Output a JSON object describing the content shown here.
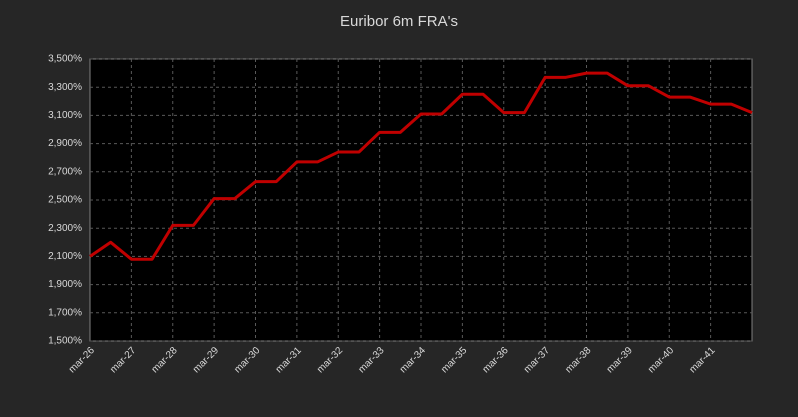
{
  "chart_data": {
    "type": "line",
    "title": "Euribor 6m FRA's",
    "categories": [
      "mar-26",
      null,
      "mar-27",
      null,
      "mar-28",
      null,
      "mar-29",
      null,
      "mar-30",
      null,
      "mar-31",
      null,
      "mar-32",
      null,
      "mar-33",
      null,
      "mar-34",
      null,
      "mar-35",
      null,
      "mar-36",
      null,
      "mar-37",
      null,
      "mar-38",
      null,
      "mar-39",
      null,
      "mar-40",
      null,
      "mar-41",
      null,
      null
    ],
    "series": [
      {
        "name": "Euribor 6m FRA",
        "color": "#c00000",
        "values": [
          2.1,
          2.2,
          2.08,
          2.08,
          2.32,
          2.32,
          2.51,
          2.51,
          2.63,
          2.63,
          2.77,
          2.77,
          2.84,
          2.84,
          2.98,
          2.98,
          3.11,
          3.11,
          3.25,
          3.25,
          3.12,
          3.12,
          3.37,
          3.37,
          3.4,
          3.4,
          3.31,
          3.31,
          3.23,
          3.23,
          3.18,
          3.18,
          3.12
        ]
      }
    ],
    "ylim": [
      1.5,
      3.5
    ],
    "yticks": [
      {
        "value": 1.5,
        "label": "1,500%"
      },
      {
        "value": 1.7,
        "label": "1,700%"
      },
      {
        "value": 1.9,
        "label": "1,900%"
      },
      {
        "value": 2.1,
        "label": "2,100%"
      },
      {
        "value": 2.3,
        "label": "2,300%"
      },
      {
        "value": 2.5,
        "label": "2,500%"
      },
      {
        "value": 2.7,
        "label": "2,700%"
      },
      {
        "value": 2.9,
        "label": "2,900%"
      },
      {
        "value": 3.1,
        "label": "3,100%"
      },
      {
        "value": 3.3,
        "label": "3,300%"
      },
      {
        "value": 3.5,
        "label": "3,500%"
      }
    ],
    "grid": true
  }
}
